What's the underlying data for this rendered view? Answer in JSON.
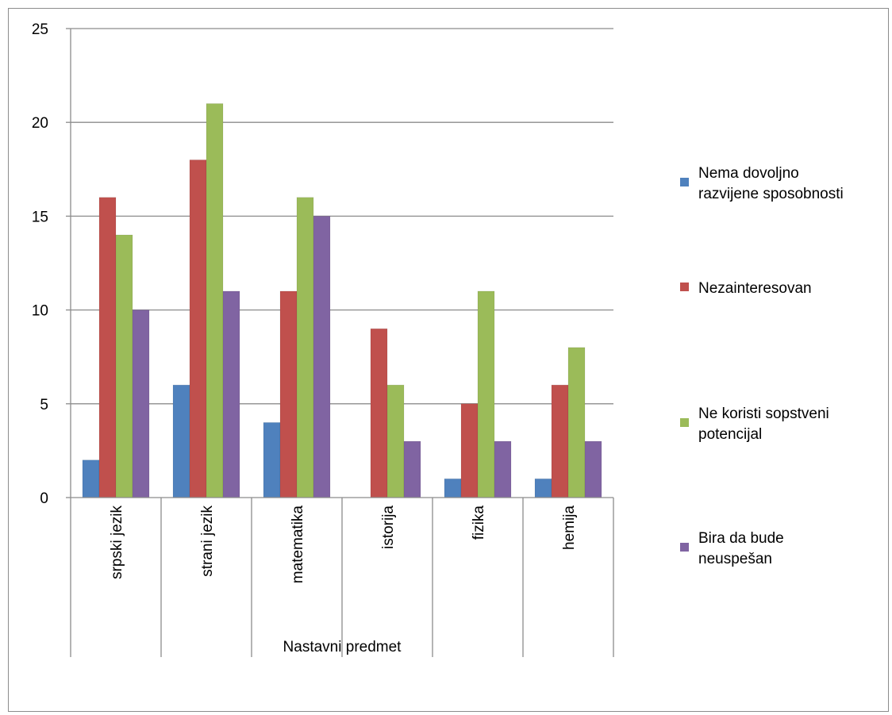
{
  "chart_data": {
    "type": "bar",
    "title": "",
    "xlabel": "Nastavni predmet",
    "ylabel": "",
    "ylim": [
      0,
      25
    ],
    "yticks": [
      0,
      5,
      10,
      15,
      20,
      25
    ],
    "grid": true,
    "legend_position": "right",
    "categories": [
      "srpski jezik",
      "strani jezik",
      "matematika",
      "istorija",
      "fizika",
      "hemija"
    ],
    "series": [
      {
        "name": "Nema dovoljno razvijene sposobnosti",
        "legend_lines": [
          "Nema dovoljno",
          "razvijene sposobnosti"
        ],
        "color": "#4F81BD",
        "values": [
          2,
          6,
          4,
          0,
          1,
          1
        ]
      },
      {
        "name": "Nezainteresovan",
        "legend_lines": [
          "Nezainteresovan"
        ],
        "color": "#C0504D",
        "values": [
          16,
          18,
          11,
          9,
          5,
          6
        ]
      },
      {
        "name": "Ne koristi sopstveni potencijal",
        "legend_lines": [
          "Ne koristi sopstveni",
          "potencijal"
        ],
        "color": "#9BBB59",
        "values": [
          14,
          21,
          16,
          6,
          11,
          8
        ]
      },
      {
        "name": "Bira da bude neuspešan",
        "legend_lines": [
          "Bira da bude",
          "neuspešan"
        ],
        "color": "#8064A2",
        "values": [
          10,
          11,
          15,
          3,
          3,
          3
        ]
      }
    ]
  }
}
